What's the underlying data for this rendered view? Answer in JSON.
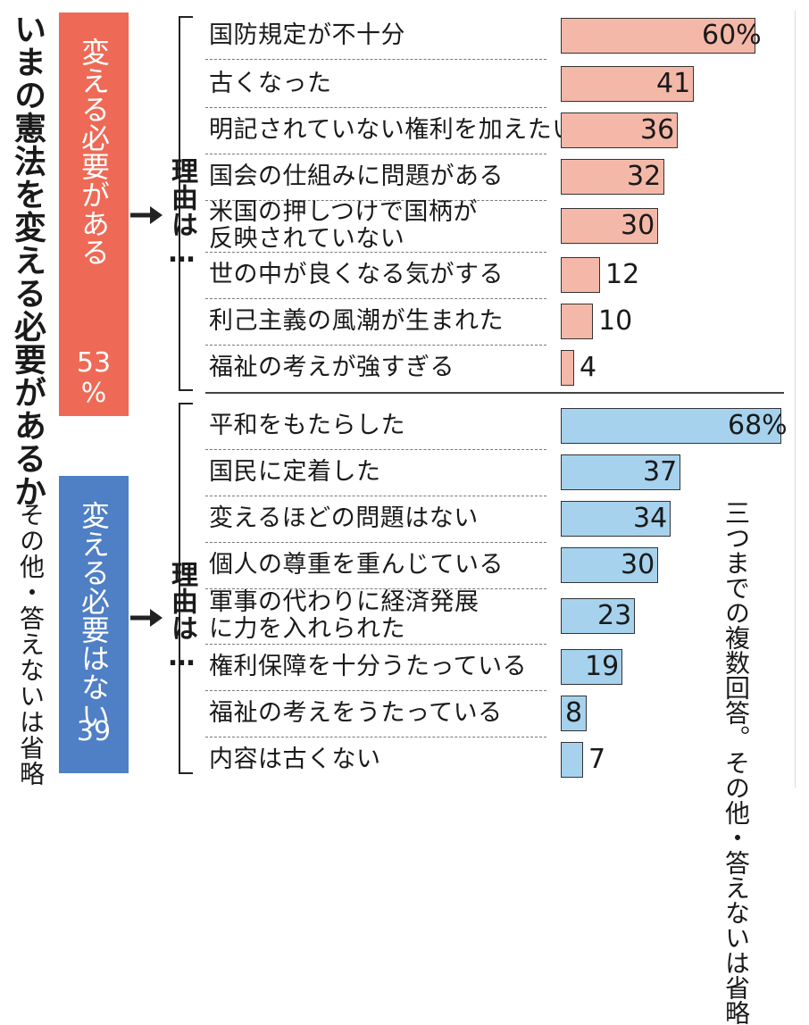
{
  "title": "いまの憲法を変える必要があるか",
  "other": "その他・答えないは省略",
  "note": "三つまでの複数回答。その他・答えないは省略",
  "reason_label": "理由は…",
  "colors": {
    "yes_box": "#ee6a56",
    "no_box": "#4f7fc4",
    "yes_bar": "#f4b8a8",
    "no_bar": "#a6d2ee"
  },
  "chart_data": {
    "type": "bar",
    "title": "いまの憲法を変える必要があるか",
    "unit": "%",
    "groups": [
      {
        "name": "変える必要がある",
        "total": "53",
        "total_unit": "%",
        "categories": [
          "国防規定が不十分",
          "古くなった",
          "明記されていない権利を加えたい",
          "国会の仕組みに問題がある",
          "米国の押しつけで国柄が反映されていない",
          "世の中が良くなる気がする",
          "利己主義の風潮が生まれた",
          "福祉の考えが強すぎる"
        ],
        "labels": [
          "国防規定が不十分",
          "古くなった",
          "明記されていない権利を加えたい",
          "国会の仕組みに問題がある",
          [
            "米国の押しつけで国柄が",
            "反映されていない"
          ],
          "世の中が良くなる気がする",
          "利己主義の風潮が生まれた",
          "福祉の考えが強すぎる"
        ],
        "values": [
          60,
          41,
          36,
          32,
          30,
          12,
          10,
          4
        ],
        "value_labels": [
          "60%",
          "41",
          "36",
          "32",
          "30",
          "12",
          "10",
          "4"
        ]
      },
      {
        "name": "変える必要はない",
        "total": "39",
        "total_unit": "",
        "categories": [
          "平和をもたらした",
          "国民に定着した",
          "変えるほどの問題はない",
          "個人の尊重を重んじている",
          "軍事の代わりに経済発展に力を入れられた",
          "権利保障を十分うたっている",
          "福祉の考えをうたっている",
          "内容は古くない"
        ],
        "labels": [
          "平和をもたらした",
          "国民に定着した",
          "変えるほどの問題はない",
          "個人の尊重を重んじている",
          [
            "軍事の代わりに経済発展",
            "に力を入れられた"
          ],
          "権利保障を十分うたっている",
          "福祉の考えをうたっている",
          "内容は古くない"
        ],
        "values": [
          68,
          37,
          34,
          30,
          23,
          19,
          8,
          7
        ],
        "value_labels": [
          "68%",
          "37",
          "34",
          "30",
          "23",
          "19",
          "8",
          "7"
        ]
      }
    ]
  }
}
